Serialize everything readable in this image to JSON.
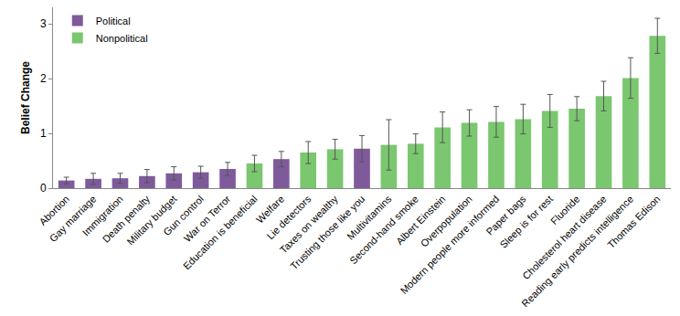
{
  "chart_data": {
    "type": "bar",
    "y_label": "Belief Change",
    "categories": [
      "Abortion",
      "Gay marriage",
      "Immigration",
      "Death penalty",
      "Military budget",
      "Gun control",
      "War on Terror",
      "Education is beneficial",
      "Welfare",
      "Lie detectors",
      "Taxes on wealthy",
      "Trusting those like you",
      "Multivitamins",
      "Second-hand smoke",
      "Albert Einstein",
      "Overpopulation",
      "Modern people more informed",
      "Paper bags",
      "Sleep is for rest",
      "Fluoride",
      "Cholesterol heart disease",
      "Reading early predicts intelligence",
      "Thomas Edison"
    ],
    "series": [
      {
        "name": "Political",
        "color": "#7e5a9b",
        "values": [
          0.14,
          0.17,
          0.18,
          0.22,
          0.27,
          0.29,
          0.35,
          null,
          0.53,
          null,
          null,
          0.72,
          null,
          null,
          null,
          null,
          null,
          null,
          null,
          null,
          null,
          null,
          null
        ],
        "errors": [
          0.06,
          0.1,
          0.09,
          0.12,
          0.12,
          0.11,
          0.12,
          null,
          0.14,
          null,
          null,
          0.24,
          null,
          null,
          null,
          null,
          null,
          null,
          null,
          null,
          null,
          null,
          null
        ]
      },
      {
        "name": "Nonpolitical",
        "color": "#7ac76f",
        "values": [
          null,
          null,
          null,
          null,
          null,
          null,
          null,
          0.45,
          null,
          0.65,
          0.71,
          null,
          0.79,
          0.81,
          1.11,
          1.19,
          1.21,
          1.26,
          1.41,
          1.45,
          1.68,
          2.01,
          2.78
        ],
        "errors": [
          null,
          null,
          null,
          null,
          null,
          null,
          null,
          0.15,
          null,
          0.2,
          0.18,
          null,
          0.46,
          0.18,
          0.28,
          0.24,
          0.28,
          0.27,
          0.3,
          0.22,
          0.27,
          0.37,
          0.32
        ]
      }
    ],
    "ylim": [
      0,
      3.3
    ],
    "yticks": [
      0,
      1,
      2,
      3
    ],
    "grid": false,
    "legend": "top-left"
  }
}
